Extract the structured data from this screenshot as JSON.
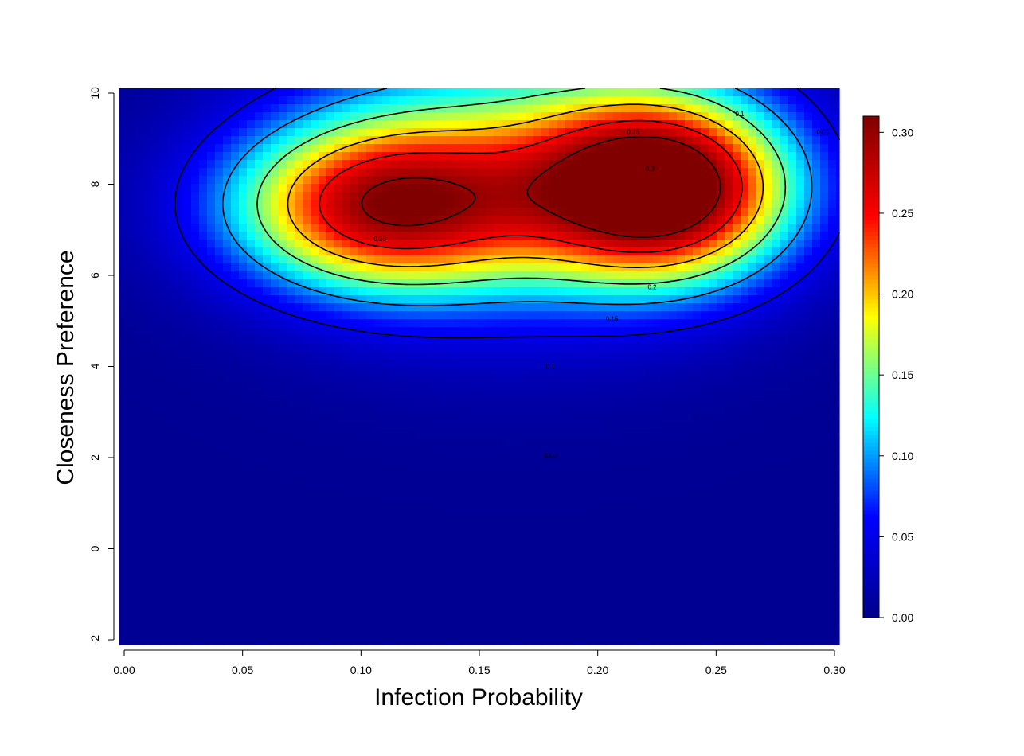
{
  "chart_data": {
    "type": "heatmap",
    "title": "",
    "xlabel": "Infection Probability",
    "ylabel": "Closeness Preference",
    "xlim": [
      0.0,
      0.3
    ],
    "ylim": [
      -2,
      10
    ],
    "x_ticks": [
      "0.00",
      "0.05",
      "0.10",
      "0.15",
      "0.20",
      "0.25",
      "0.30"
    ],
    "y_ticks": [
      "-2",
      "0",
      "2",
      "4",
      "6",
      "8",
      "10"
    ],
    "colorbar": {
      "range": [
        0.0,
        0.31
      ],
      "ticks": [
        "0.00",
        "0.05",
        "0.10",
        "0.15",
        "0.20",
        "0.25",
        "0.30"
      ],
      "palette": [
        "#00008b",
        "#0000ff",
        "#00ffff",
        "#ffff00",
        "#ff0000",
        "#800000"
      ]
    },
    "grid": false,
    "density_surface": {
      "baseline": 0.004,
      "components": [
        {
          "x_center": 0.108,
          "y_center": 7.5,
          "x_spread": 0.045,
          "y_spread": 1.3,
          "height": 0.23
        },
        {
          "x_center": 0.228,
          "y_center": 7.9,
          "x_spread": 0.038,
          "y_spread": 1.4,
          "height": 0.3
        },
        {
          "x_center": 0.165,
          "y_center": 8.4,
          "x_spread": 0.065,
          "y_spread": 2.3,
          "height": 0.12
        }
      ]
    },
    "contour_levels": [
      0.05,
      0.1,
      0.15,
      0.2,
      0.25,
      0.3
    ],
    "contour_labels": [
      {
        "text": "0.25",
        "x": 0.108,
        "y": 6.8
      },
      {
        "text": "0.25",
        "x": 0.215,
        "y": 9.15
      },
      {
        "text": "0.3",
        "x": 0.222,
        "y": 8.35
      },
      {
        "text": "0.2",
        "x": 0.223,
        "y": 5.75
      },
      {
        "text": "0.15",
        "x": 0.206,
        "y": 5.05
      },
      {
        "text": "0.1",
        "x": 0.18,
        "y": 4.0
      },
      {
        "text": "0.05",
        "x": 0.18,
        "y": 2.05
      },
      {
        "text": "0.1",
        "x": 0.26,
        "y": 9.55
      },
      {
        "text": "0.05",
        "x": 0.295,
        "y": 9.15
      }
    ]
  }
}
